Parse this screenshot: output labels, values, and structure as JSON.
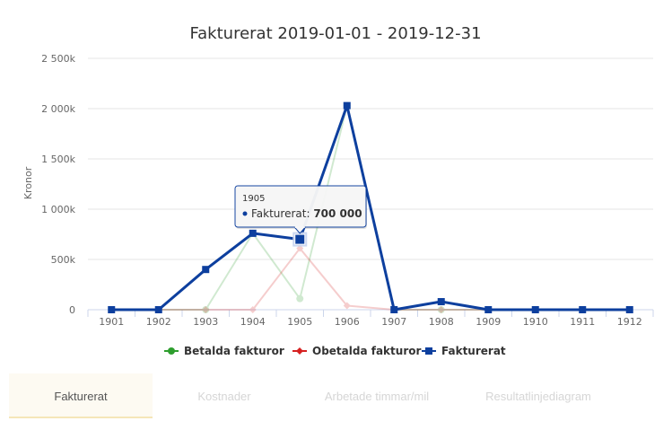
{
  "chart_data": {
    "type": "line",
    "title": "Fakturerat 2019-01-01 - 2019-12-31",
    "ylabel": "Kronor",
    "xlabel": "",
    "categories": [
      "1901",
      "1902",
      "1903",
      "1904",
      "1905",
      "1906",
      "1907",
      "1908",
      "1909",
      "1910",
      "1911",
      "1912"
    ],
    "ylim": [
      0,
      2500000
    ],
    "y_ticks": [
      0,
      500000,
      1000000,
      1500000,
      2000000,
      2500000
    ],
    "y_tick_labels": [
      "0",
      "500k",
      "1 000k",
      "1 500k",
      "2 000k",
      "2 500k"
    ],
    "grid": true,
    "legend_position": "bottom-center",
    "series": [
      {
        "name": "Betalda fakturor",
        "color": "#2e9e2e",
        "marker": "circle",
        "faded": true,
        "values": [
          0,
          0,
          0,
          760000,
          110000,
          2030000,
          0,
          0,
          0,
          0,
          0,
          0
        ]
      },
      {
        "name": "Obetalda fakturor",
        "color": "#d62020",
        "marker": "diamond",
        "faded": true,
        "values": [
          0,
          0,
          0,
          0,
          610000,
          40000,
          0,
          0,
          0,
          0,
          0,
          0
        ]
      },
      {
        "name": "Fakturerat",
        "color": "#0d3f9e",
        "marker": "square",
        "faded": false,
        "values": [
          0,
          0,
          400000,
          760000,
          700000,
          2030000,
          0,
          80000,
          0,
          0,
          0,
          0
        ]
      }
    ],
    "tooltip": {
      "category": "1905",
      "series_label": "Fakturerat:",
      "value_text": "700 000",
      "series_index": 2,
      "point_index": 4
    }
  },
  "tabs": [
    {
      "label": "Fakturerat",
      "active": true
    },
    {
      "label": "Kostnader",
      "active": false
    },
    {
      "label": "Arbetade timmar/mil",
      "active": false
    },
    {
      "label": "Resultatlinjediagram",
      "active": false
    }
  ]
}
